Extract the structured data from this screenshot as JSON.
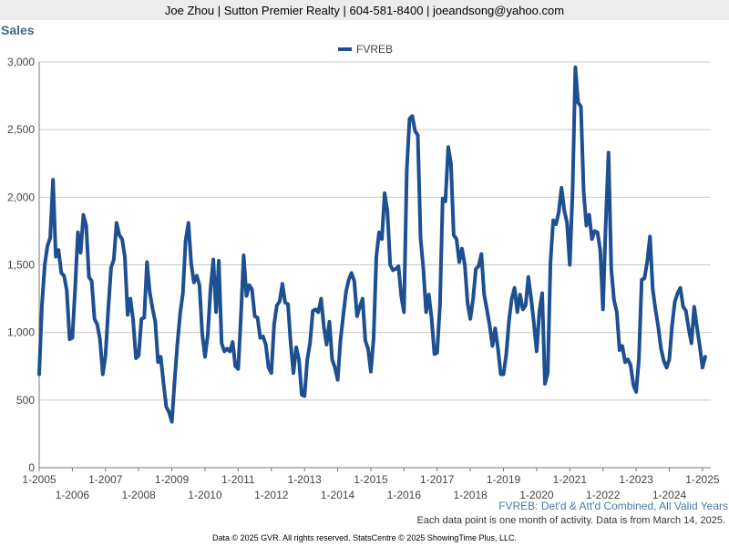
{
  "header": {
    "contact": "Joe Zhou | Sutton Premier Realty | 604-581-8400 | joeandsong@yahoo.com"
  },
  "chart_title": "Sales",
  "notes": {
    "series_note": "FVREB: Det'd & Att'd Combined, All Valid Years",
    "data_note": "Each data point is one month of activity. Data is from March 14, 2025."
  },
  "footer": "Data © 2025 GVR. All rights reserved. StatsCentre © 2025 ShowingTime Plus, LLC.",
  "colors": {
    "series": "#1d4f91",
    "grid": "#c8c8c8",
    "axis_text": "#444444"
  },
  "chart_data": {
    "type": "line",
    "title": "Sales",
    "xlabel": "",
    "ylabel": "",
    "ylim": [
      0,
      3000
    ],
    "yticks": [
      0,
      500,
      1000,
      1500,
      2000,
      2500,
      3000
    ],
    "ytick_labels": [
      "0",
      "500",
      "1,000",
      "1,500",
      "2,000",
      "2,500",
      "3,000"
    ],
    "xlim": [
      2005.0,
      2025.25
    ],
    "xticks": [
      2005,
      2006,
      2007,
      2008,
      2009,
      2010,
      2011,
      2012,
      2013,
      2014,
      2015,
      2016,
      2017,
      2018,
      2019,
      2020,
      2021,
      2022,
      2023,
      2024,
      2025
    ],
    "xtick_labels": [
      "1-2005",
      "1-2006",
      "1-2007",
      "1-2008",
      "1-2009",
      "1-2010",
      "1-2011",
      "1-2012",
      "1-2013",
      "1-2014",
      "1-2015",
      "1-2016",
      "1-2017",
      "1-2018",
      "1-2019",
      "1-2020",
      "1-2021",
      "1-2022",
      "1-2023",
      "1-2024",
      "1-2025"
    ],
    "grid": true,
    "legend": "top-center",
    "series": [
      {
        "name": "FVREB",
        "start": "2005-01",
        "values": [
          690,
          1200,
          1500,
          1640,
          1700,
          2130,
          1560,
          1610,
          1440,
          1420,
          1310,
          950,
          960,
          1320,
          1740,
          1590,
          1870,
          1790,
          1410,
          1380,
          1100,
          1060,
          950,
          690,
          830,
          1170,
          1480,
          1540,
          1810,
          1720,
          1690,
          1560,
          1130,
          1250,
          1090,
          810,
          830,
          1100,
          1110,
          1520,
          1300,
          1180,
          1080,
          780,
          820,
          620,
          450,
          410,
          340,
          640,
          910,
          1140,
          1290,
          1680,
          1810,
          1510,
          1370,
          1420,
          1350,
          990,
          820,
          980,
          1320,
          1540,
          1150,
          1530,
          920,
          860,
          880,
          860,
          930,
          750,
          730,
          1120,
          1570,
          1270,
          1350,
          1320,
          1120,
          1110,
          960,
          970,
          910,
          740,
          700,
          1060,
          1200,
          1230,
          1360,
          1220,
          1210,
          920,
          700,
          890,
          800,
          540,
          530,
          800,
          920,
          1160,
          1170,
          1150,
          1250,
          1040,
          910,
          1080,
          800,
          740,
          650,
          940,
          1120,
          1300,
          1390,
          1440,
          1380,
          1120,
          1190,
          1250,
          940,
          880,
          710,
          960,
          1560,
          1740,
          1690,
          2030,
          1900,
          1500,
          1460,
          1470,
          1490,
          1270,
          1150,
          2200,
          2580,
          2600,
          2490,
          2460,
          1700,
          1470,
          1150,
          1280,
          1100,
          840,
          850,
          1200,
          1990,
          1970,
          2370,
          2250,
          1720,
          1690,
          1520,
          1620,
          1500,
          1220,
          1100,
          1250,
          1470,
          1490,
          1580,
          1280,
          1170,
          1050,
          900,
          1030,
          880,
          690,
          690,
          840,
          1090,
          1250,
          1330,
          1150,
          1280,
          1170,
          1200,
          1410,
          1250,
          1070,
          860,
          1160,
          1290,
          620,
          700,
          1520,
          1830,
          1800,
          1890,
          2070,
          1900,
          1810,
          1500,
          2060,
          2960,
          2700,
          2670,
          2040,
          1790,
          1870,
          1690,
          1750,
          1740,
          1610,
          1170,
          1800,
          2330,
          1470,
          1240,
          1150,
          870,
          900,
          780,
          800,
          760,
          610,
          560,
          800,
          1390,
          1400,
          1520,
          1710,
          1320,
          1170,
          1040,
          880,
          790,
          740,
          800,
          1050,
          1230,
          1290,
          1330,
          1190,
          1160,
          1030,
          920,
          1190,
          1040,
          900,
          740,
          820
        ]
      }
    ]
  }
}
